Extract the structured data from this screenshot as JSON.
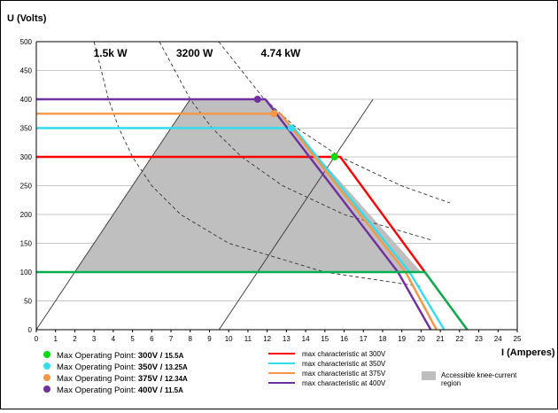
{
  "chart_data": {
    "type": "line",
    "title": "",
    "ylabel": "U (Volts)",
    "xlabel": "I (Amperes)",
    "xlim": [
      0,
      25
    ],
    "ylim": [
      0,
      500
    ],
    "x_ticks": [
      "0",
      "1",
      "2",
      "3",
      "4",
      "5",
      "6",
      "7",
      "8",
      "9",
      "10",
      "11",
      "12",
      "13",
      "14",
      "15",
      "16",
      "17",
      "18",
      "19",
      "20",
      "21",
      "22",
      "23",
      "24",
      "25"
    ],
    "y_ticks": [
      "0",
      "50",
      "100",
      "150",
      "200",
      "250",
      "300",
      "350",
      "400",
      "450",
      "500"
    ],
    "grid": "horizontal",
    "power_curves": [
      {
        "label": "1.5k W",
        "points": [
          [
            3.0,
            500
          ],
          [
            3.75,
            400
          ],
          [
            4.29,
            350
          ],
          [
            5.0,
            300
          ],
          [
            6.0,
            250
          ],
          [
            7.5,
            200
          ],
          [
            10,
            150
          ],
          [
            15,
            100
          ],
          [
            20,
            75
          ]
        ]
      },
      {
        "label": "3200 W",
        "points": [
          [
            6.4,
            500
          ],
          [
            8.0,
            400
          ],
          [
            9.14,
            350
          ],
          [
            10.67,
            300
          ],
          [
            12.8,
            250
          ],
          [
            16,
            200
          ],
          [
            20.5,
            156
          ]
        ]
      },
      {
        "label": "4.74 kW",
        "points": [
          [
            9.48,
            500
          ],
          [
            11.85,
            400
          ],
          [
            13.54,
            350
          ],
          [
            15.8,
            300
          ],
          [
            18.96,
            250
          ],
          [
            21.5,
            220
          ]
        ]
      }
    ],
    "diagonal_lines": [
      {
        "points": [
          [
            0,
            0
          ],
          [
            8,
            400
          ]
        ]
      },
      {
        "points": [
          [
            9.5,
            0
          ],
          [
            17.5,
            400
          ]
        ]
      }
    ],
    "shaded_region": {
      "label": "Accessible knee-current region",
      "color": "#bfbfbf",
      "points": [
        [
          2,
          100
        ],
        [
          8,
          400
        ],
        [
          12,
          400
        ],
        [
          20,
          100
        ]
      ]
    },
    "series": [
      {
        "name": "max characteristic  at 300V",
        "color": "#ff0000",
        "points": [
          [
            0,
            300
          ],
          [
            15.8,
            300
          ],
          [
            20.2,
            100
          ],
          [
            22.4,
            0
          ]
        ]
      },
      {
        "name": "max characteristic  at 350V",
        "color": "#33ddee",
        "points": [
          [
            0,
            350
          ],
          [
            13.4,
            350
          ],
          [
            19.4,
            100
          ],
          [
            21.2,
            0
          ]
        ]
      },
      {
        "name": "max characteristic  at 375V",
        "color": "#f79646",
        "points": [
          [
            0,
            375
          ],
          [
            12.7,
            375
          ],
          [
            19.2,
            100
          ],
          [
            20.8,
            0
          ]
        ]
      },
      {
        "name": "max characteristic  at 400V",
        "color": "#7030a0",
        "points": [
          [
            0,
            400
          ],
          [
            11.9,
            400
          ],
          [
            18.8,
            100
          ],
          [
            20.5,
            0
          ]
        ]
      },
      {
        "name": "",
        "color": "#00b050",
        "points": [
          [
            0,
            100
          ],
          [
            20.2,
            100
          ],
          [
            22.4,
            0
          ]
        ]
      }
    ],
    "operating_points": [
      {
        "label": "Max Operating Point: ",
        "value": "300V / ",
        "current": "15.5A",
        "color": "#00dd00",
        "x": 15.5,
        "y": 300
      },
      {
        "label": "Max Operating Point: ",
        "value": "350V / ",
        "current": "13.25A",
        "color": "#33ddee",
        "x": 13.25,
        "y": 350
      },
      {
        "label": "Max Operating Point: ",
        "value": "375V / ",
        "current": "12.34A",
        "color": "#f79646",
        "x": 12.34,
        "y": 375
      },
      {
        "label": "Max Operating Point: ",
        "value": "400V / ",
        "current": "11.5A",
        "color": "#7030a0",
        "x": 11.5,
        "y": 400
      }
    ]
  }
}
